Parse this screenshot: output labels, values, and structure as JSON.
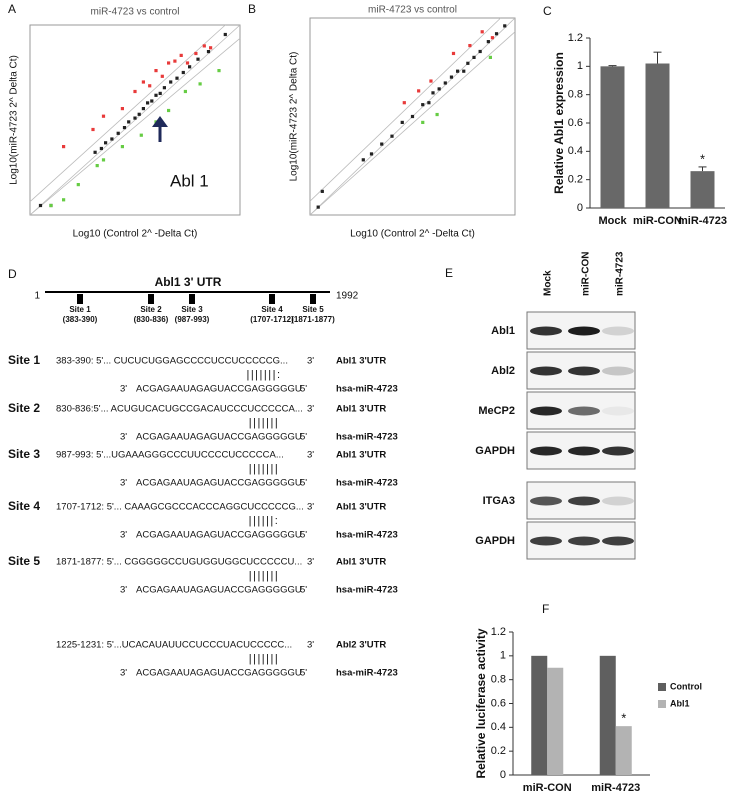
{
  "chart_data": [
    {
      "type": "scatter",
      "label": "A",
      "title": "miR-4723 vs control",
      "xlabel": "Log10 (Control 2^  -Delta Ct)",
      "ylabel": "Log10(miR-4723  2^ Delta Ct)",
      "annotation": "Abl 1",
      "xlim": [
        0,
        10
      ],
      "ylim": [
        0,
        10
      ],
      "series": [
        {
          "color": "#222222",
          "x": [
            0.5,
            1,
            3.1,
            3.4,
            3.6,
            3.9,
            4.2,
            4.5,
            4.7,
            5.0,
            5.2,
            5.4,
            5.6,
            5.8,
            6.0,
            6.2,
            6.4,
            6.7,
            7.0,
            7.3,
            7.6,
            8.0,
            8.5,
            9.3
          ],
          "y": [
            0.5,
            0.5,
            3.3,
            3.5,
            3.8,
            4.0,
            4.3,
            4.6,
            4.9,
            5.1,
            5.3,
            5.6,
            5.9,
            6.0,
            6.3,
            6.4,
            6.7,
            7.0,
            7.2,
            7.5,
            7.8,
            8.2,
            8.6,
            9.5
          ]
        },
        {
          "color": "#e83a3a",
          "x": [
            1.6,
            3.0,
            3.5,
            4.4,
            5.0,
            5.4,
            5.7,
            6.0,
            6.3,
            6.6,
            6.9,
            7.2,
            7.5,
            7.9,
            8.3,
            8.6
          ],
          "y": [
            3.6,
            4.5,
            5.2,
            5.6,
            6.5,
            7.0,
            6.8,
            7.6,
            7.3,
            8.0,
            8.1,
            8.4,
            8.0,
            8.5,
            8.9,
            8.8
          ]
        },
        {
          "color": "#66cc44",
          "x": [
            1.0,
            1.6,
            2.3,
            3.2,
            3.5,
            4.4,
            5.3,
            6.0,
            6.6,
            7.4,
            8.1,
            9.0
          ],
          "y": [
            0.5,
            0.8,
            1.6,
            2.6,
            2.9,
            3.6,
            4.2,
            4.9,
            5.5,
            6.5,
            6.9,
            7.6
          ]
        }
      ]
    },
    {
      "type": "scatter",
      "label": "B",
      "title": "miR-4723 vs control",
      "xlabel": "Log10 (Control 2^  -Delta Ct)",
      "ylabel": "Log10(miR-4723  2^ Delta Ct)",
      "xlim": [
        0,
        10
      ],
      "ylim": [
        0,
        10
      ],
      "series": [
        {
          "color": "#222222",
          "x": [
            0.4,
            0.6,
            2.6,
            3.0,
            3.5,
            4.0,
            4.5,
            5.0,
            5.5,
            5.8,
            6.0,
            6.3,
            6.6,
            6.9,
            7.2,
            7.5,
            7.7,
            8.0,
            8.3,
            8.7,
            9.1,
            9.5
          ],
          "y": [
            0.4,
            1.2,
            2.8,
            3.1,
            3.6,
            4.0,
            4.7,
            5.0,
            5.6,
            5.7,
            6.2,
            6.4,
            6.7,
            7.0,
            7.3,
            7.3,
            7.7,
            8.0,
            8.3,
            8.8,
            9.2,
            9.6
          ]
        },
        {
          "color": "#e83a3a",
          "x": [
            4.6,
            5.3,
            5.9,
            7.0,
            7.8,
            8.4,
            8.9
          ],
          "y": [
            5.7,
            6.3,
            6.8,
            8.2,
            8.6,
            9.3,
            9.0
          ]
        },
        {
          "color": "#66cc44",
          "x": [
            5.5,
            6.2,
            8.8
          ],
          "y": [
            4.7,
            5.1,
            8.0
          ]
        }
      ]
    },
    {
      "type": "bar",
      "label": "C",
      "ylabel": "Relative Abl1 expression",
      "categories": [
        "Mock",
        "miR-CON",
        "miR-4723"
      ],
      "series": [
        {
          "color": "#686868",
          "values": [
            1.0,
            1.02,
            0.26
          ],
          "errors": [
            0.005,
            0.08,
            0.03
          ],
          "significance": [
            null,
            null,
            "*"
          ]
        }
      ],
      "ylim": [
        0,
        1.2
      ],
      "yticks": [
        0,
        0.2,
        0.4,
        0.6,
        0.8,
        1,
        1.2
      ]
    },
    {
      "type": "bar",
      "label": "F",
      "ylabel": "Relative luciferase activity",
      "legend": "right",
      "categories": [
        "miR-CON",
        "miR-4723"
      ],
      "series": [
        {
          "name": "Control",
          "color": "#5f5f5f",
          "values": [
            1,
            1
          ],
          "significance": [
            null,
            null
          ]
        },
        {
          "name": "Abl1",
          "color": "#b3b3b3",
          "values": [
            0.9,
            0.41
          ],
          "significance": [
            null,
            "*"
          ]
        }
      ],
      "ylim": [
        0,
        1.2
      ],
      "yticks": [
        0,
        0.2,
        0.4,
        0.6,
        0.8,
        1,
        1.2
      ]
    }
  ],
  "panel_d": {
    "label": "D",
    "utr_title": "Abl1 3' UTR",
    "utr_start": "1",
    "utr_end": "1992",
    "site_map": [
      {
        "name": "Site 1",
        "range": "(383-390)"
      },
      {
        "name": "Site 2",
        "range": "(830-836)"
      },
      {
        "name": "Site 3",
        "range": "(987-993)"
      },
      {
        "name": "Site 4",
        "range": "(1707-1712)"
      },
      {
        "name": "Site 5",
        "range": "(1871-1877)"
      }
    ],
    "alignments": [
      {
        "site": "Site 1",
        "target": "383-390: 5'... CUCUCUGGAGCCCCUCCUCCCCCG...",
        "target_end": "3'",
        "target_name": "Abl1 3'UTR",
        "pairing": "|||||||:",
        "mirna_start": "3'",
        "mirna": "ACGAGAAUAGAGUACCGAGGGGGU",
        "mirna_end": "5'",
        "mirna_name": "hsa-miR-4723"
      },
      {
        "site": "Site 2",
        "target": "830-836:5'... ACUGUCACUGCCGACAUCCCUCCCCCA...",
        "target_end": "3'",
        "target_name": "Abl1 3'UTR",
        "pairing": "|||||||",
        "mirna_start": "3'",
        "mirna": "ACGAGAAUAGAGUACCGAGGGGGU",
        "mirna_end": "5'",
        "mirna_name": "hsa-miR-4723"
      },
      {
        "site": "Site 3",
        "target": "987-993: 5'...UGAAAGGGCCCUUCCCCUCCCCCA...",
        "target_end": "3'",
        "target_name": "Abl1 3'UTR",
        "pairing": "|||||||",
        "mirna_start": "3'",
        "mirna": "ACGAGAAUAGAGUACCGAGGGGGU",
        "mirna_end": "5'",
        "mirna_name": "hsa-miR-4723"
      },
      {
        "site": "Site 4",
        "target": "1707-1712: 5'... CAAAGCGCCCACCCAGGCUCCCCCG...",
        "target_end": "3'",
        "target_name": "Abl1 3'UTR",
        "pairing": "||||||:",
        "mirna_start": "3'",
        "mirna": "ACGAGAAUAGAGUACCGAGGGGGU",
        "mirna_end": "5'",
        "mirna_name": "hsa-miR-4723"
      },
      {
        "site": "Site 5",
        "target": "1871-1877: 5'... CGGGGGCCUGUGGUGGCUCCCCCU...",
        "target_end": "3'",
        "target_name": "Abl1 3'UTR",
        "pairing": "|||||||",
        "mirna_start": "3'",
        "mirna": "ACGAGAAUAGAGUACCGAGGGGGU",
        "mirna_end": "5'",
        "mirna_name": "hsa-miR-4723"
      },
      {
        "target": "1225-1231: 5'...UCACAUAUUCCUCCCUACUCCCCC...",
        "target_end": "3'",
        "target_name": "Abl2 3'UTR",
        "pairing": "|||||||",
        "mirna_start": "3'",
        "mirna": "ACGAGAAUAGAGUACCGAGGGGGU",
        "mirna_end": "5'",
        "mirna_name": "hsa-miR-4723"
      }
    ]
  },
  "panel_e": {
    "label": "E",
    "lanes": [
      "Mock",
      "miR-CON",
      "miR-4723"
    ],
    "rows": [
      "Abl1",
      "Abl2",
      "MeCP2",
      "GAPDH",
      "ITGA3",
      "GAPDH"
    ]
  }
}
